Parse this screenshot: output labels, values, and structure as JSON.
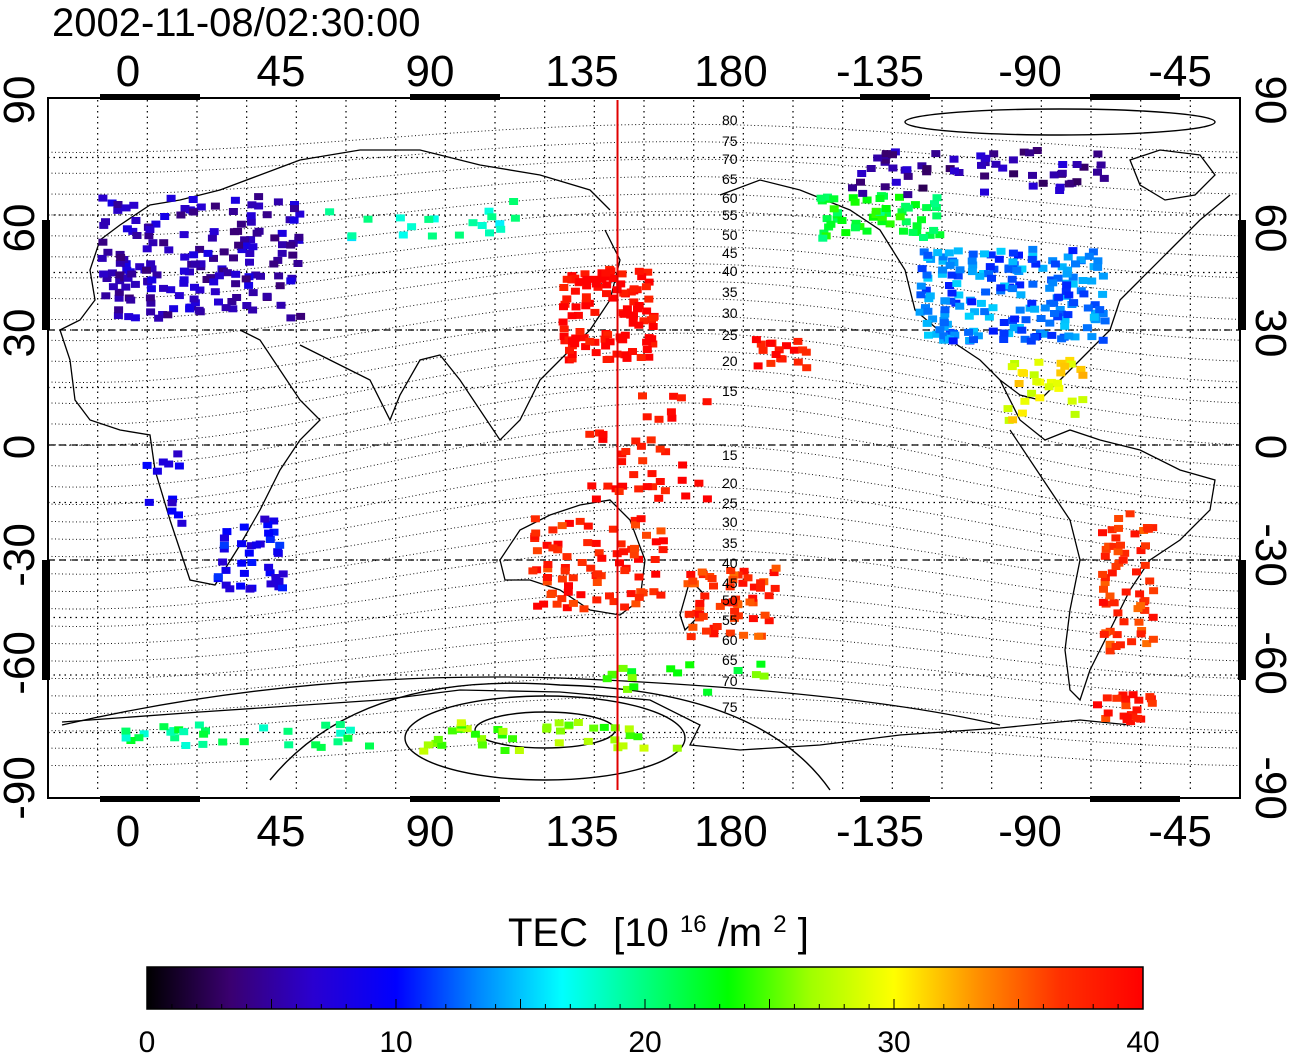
{
  "timestamp": "2002-11-08/02:30:00",
  "map": {
    "x_ticks": [
      "0",
      "45",
      "90",
      "135",
      "180",
      "-135",
      "-90",
      "-45"
    ],
    "y_ticks": [
      "90",
      "60",
      "30",
      "0",
      "-30",
      "-60",
      "-90"
    ],
    "marker_longitude": 142,
    "marker_color": "#e00000"
  },
  "contour_labels": [
    "80",
    "75",
    "70",
    "65",
    "60",
    "55",
    "50",
    "45",
    "40",
    "35",
    "30",
    "25",
    "20",
    "15",
    "15",
    "20",
    "25",
    "30",
    "35",
    "40",
    "45",
    "50",
    "55",
    "60",
    "65",
    "70",
    "75"
  ],
  "colorbar": {
    "title": "TEC",
    "units_base": "[10",
    "units_exp": "16",
    "units_mid": "/m",
    "units_exp2": "2",
    "units_end": "]",
    "min": 0,
    "max": 40,
    "ticks": [
      "0",
      "10",
      "20",
      "30",
      "40"
    ],
    "colors": [
      "#000000",
      "#3a0070",
      "#2a00d0",
      "#0000ff",
      "#0088ff",
      "#00ffff",
      "#00ff80",
      "#00ff00",
      "#a0ff00",
      "#ffff00",
      "#ff9000",
      "#ff3000",
      "#ff0000"
    ]
  },
  "chart_data": {
    "type": "heatmap",
    "title": "2002-11-08/02:30:00",
    "xlabel": "",
    "ylabel": "",
    "x_ticks": [
      0,
      45,
      90,
      135,
      180,
      -135,
      -90,
      -45
    ],
    "y_ticks": [
      90,
      60,
      30,
      0,
      -30,
      -60,
      -90
    ],
    "value_range": [
      0,
      40
    ],
    "colorbar_label": "TEC [10^16/m^2]",
    "regions": [
      {
        "lon": 15,
        "lat": 50,
        "tec": 6
      },
      {
        "lon": 30,
        "lat": -28,
        "tec": 9
      },
      {
        "lon": 138,
        "lat": 35,
        "tec": 40
      },
      {
        "lon": 135,
        "lat": -30,
        "tec": 38
      },
      {
        "lon": -100,
        "lat": 40,
        "tec": 13
      },
      {
        "lon": -140,
        "lat": 60,
        "tec": 22
      },
      {
        "lon": -65,
        "lat": -35,
        "tec": 37
      },
      {
        "lon": 175,
        "lat": -40,
        "tec": 37
      },
      {
        "lon": 120,
        "lat": -75,
        "tec": 26
      }
    ]
  }
}
